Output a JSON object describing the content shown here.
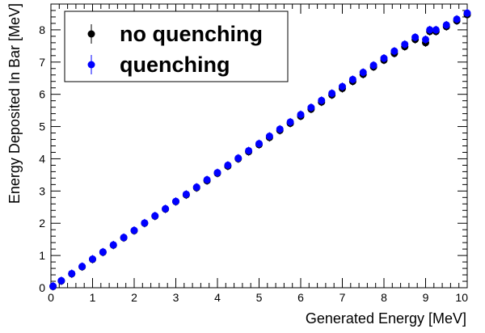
{
  "chart_data": {
    "type": "scatter",
    "xlabel": "Generated Energy [MeV]",
    "ylabel": "Energy Deposited In Bar [MeV]",
    "xlim": [
      0,
      10
    ],
    "ylim": [
      0,
      8.8
    ],
    "x_ticks": [
      "0",
      "1",
      "2",
      "3",
      "4",
      "5",
      "6",
      "7",
      "8",
      "9",
      "10"
    ],
    "y_ticks": [
      "0",
      "1",
      "2",
      "3",
      "4",
      "5",
      "6",
      "7",
      "8"
    ],
    "grid": false,
    "legend_position": "top-left",
    "series": [
      {
        "name": "no quenching",
        "color": "#000000",
        "x": [
          0.05,
          0.25,
          0.5,
          0.75,
          1.0,
          1.25,
          1.5,
          1.75,
          2.0,
          2.25,
          2.5,
          2.75,
          3.0,
          3.25,
          3.5,
          3.75,
          4.0,
          4.25,
          4.5,
          4.75,
          5.0,
          5.25,
          5.5,
          5.75,
          6.0,
          6.25,
          6.5,
          6.75,
          7.0,
          7.25,
          7.5,
          7.75,
          8.0,
          8.25,
          8.5,
          8.75,
          9.0,
          9.1,
          9.25,
          9.5,
          9.75,
          10.0
        ],
        "y": [
          0.04,
          0.21,
          0.43,
          0.65,
          0.88,
          1.1,
          1.32,
          1.55,
          1.77,
          2.0,
          2.22,
          2.44,
          2.67,
          2.88,
          3.1,
          3.32,
          3.55,
          3.77,
          4.0,
          4.22,
          4.44,
          4.66,
          4.88,
          5.1,
          5.32,
          5.54,
          5.76,
          5.98,
          6.18,
          6.4,
          6.62,
          6.85,
          7.06,
          7.27,
          7.48,
          7.7,
          7.6,
          7.95,
          7.95,
          8.1,
          8.28,
          8.47
        ]
      },
      {
        "name": "quenching",
        "color": "#0000ff",
        "x": [
          0.05,
          0.25,
          0.5,
          0.75,
          1.0,
          1.25,
          1.5,
          1.75,
          2.0,
          2.25,
          2.5,
          2.75,
          3.0,
          3.25,
          3.5,
          3.75,
          4.0,
          4.25,
          4.5,
          4.75,
          5.0,
          5.25,
          5.5,
          5.75,
          6.0,
          6.25,
          6.5,
          6.75,
          7.0,
          7.25,
          7.5,
          7.75,
          8.0,
          8.25,
          8.5,
          8.75,
          9.0,
          9.1,
          9.25,
          9.5,
          9.75,
          10.0
        ],
        "y": [
          0.05,
          0.22,
          0.44,
          0.66,
          0.89,
          1.11,
          1.33,
          1.56,
          1.78,
          2.01,
          2.23,
          2.45,
          2.68,
          2.9,
          3.12,
          3.35,
          3.57,
          3.8,
          4.02,
          4.25,
          4.47,
          4.7,
          4.92,
          5.14,
          5.37,
          5.59,
          5.81,
          6.03,
          6.24,
          6.46,
          6.68,
          6.9,
          7.12,
          7.34,
          7.55,
          7.77,
          7.7,
          8.0,
          8.0,
          8.15,
          8.33,
          8.52
        ]
      }
    ]
  }
}
